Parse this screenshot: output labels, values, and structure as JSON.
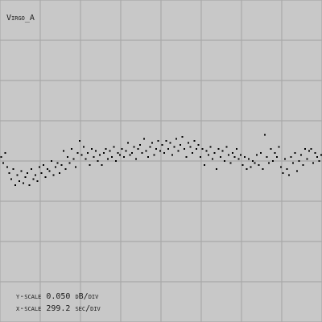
{
  "chart_data": {
    "type": "scatter",
    "title": "Virgo_A",
    "annotations": [
      "y-scale 0.050 dB/div",
      "x-scale 299.2 sec/div"
    ],
    "xlim": [
      0,
      8
    ],
    "ylim": [
      -4,
      4
    ],
    "xticks": [
      0,
      1,
      2,
      3,
      4,
      5,
      6,
      7,
      8
    ],
    "yticks": [
      -4,
      -3,
      -2,
      -1,
      0,
      1,
      2,
      3,
      4
    ],
    "grid": true,
    "color": "#000000",
    "x": [
      0.03,
      0.08,
      0.13,
      0.18,
      0.23,
      0.28,
      0.33,
      0.38,
      0.43,
      0.48,
      0.53,
      0.58,
      0.63,
      0.68,
      0.73,
      0.78,
      0.83,
      0.88,
      0.93,
      0.98,
      1.03,
      1.08,
      1.13,
      1.18,
      1.23,
      1.28,
      1.33,
      1.38,
      1.43,
      1.48,
      1.53,
      1.58,
      1.63,
      1.68,
      1.73,
      1.78,
      1.83,
      1.88,
      1.93,
      1.98,
      2.03,
      2.08,
      2.13,
      2.18,
      2.23,
      2.28,
      2.33,
      2.38,
      2.43,
      2.48,
      2.53,
      2.58,
      2.63,
      2.68,
      2.73,
      2.78,
      2.83,
      2.88,
      2.93,
      2.98,
      3.03,
      3.08,
      3.13,
      3.18,
      3.23,
      3.28,
      3.33,
      3.38,
      3.43,
      3.48,
      3.53,
      3.58,
      3.63,
      3.68,
      3.73,
      3.78,
      3.83,
      3.88,
      3.93,
      3.98,
      4.03,
      4.08,
      4.13,
      4.18,
      4.23,
      4.28,
      4.33,
      4.38,
      4.43,
      4.48,
      4.53,
      4.58,
      4.63,
      4.68,
      4.73,
      4.78,
      4.83,
      4.88,
      4.93,
      4.98,
      5.03,
      5.08,
      5.13,
      5.18,
      5.23,
      5.28,
      5.33,
      5.38,
      5.43,
      5.48,
      5.53,
      5.58,
      5.63,
      5.68,
      5.73,
      5.78,
      5.83,
      5.88,
      5.93,
      5.98,
      6.03,
      6.08,
      6.13,
      6.18,
      6.23,
      6.28,
      6.33,
      6.38,
      6.43,
      6.48,
      6.53,
      6.58,
      6.63,
      6.68,
      6.73,
      6.78,
      6.83,
      6.88,
      6.93,
      6.98,
      7.03,
      7.08,
      7.13,
      7.18,
      7.23,
      7.28,
      7.33,
      7.38,
      7.43,
      7.48,
      7.53,
      7.58,
      7.63,
      7.68,
      7.73,
      7.78,
      7.83,
      7.88,
      7.93,
      7.98
    ],
    "values": [
      0.1,
      -0.05,
      0.2,
      -0.15,
      -0.3,
      -0.45,
      -0.2,
      -0.6,
      -0.35,
      -0.5,
      -0.25,
      -0.55,
      -0.4,
      -0.3,
      -0.6,
      -0.2,
      -0.45,
      -0.35,
      -0.5,
      -0.15,
      -0.3,
      -0.1,
      -0.4,
      -0.2,
      -0.25,
      0.0,
      -0.35,
      -0.15,
      -0.05,
      -0.3,
      -0.1,
      0.25,
      -0.2,
      0.1,
      -0.05,
      0.3,
      0.05,
      -0.15,
      0.2,
      0.5,
      0.15,
      0.35,
      0.05,
      0.2,
      -0.1,
      0.3,
      0.1,
      0.25,
      0.0,
      0.15,
      -0.1,
      0.2,
      0.3,
      0.05,
      0.25,
      0.1,
      0.35,
      0.0,
      0.2,
      0.15,
      0.3,
      0.1,
      0.25,
      0.45,
      0.15,
      0.2,
      0.35,
      0.05,
      0.3,
      0.4,
      0.2,
      0.55,
      0.25,
      0.1,
      0.35,
      0.45,
      0.15,
      0.3,
      0.5,
      0.25,
      0.4,
      0.2,
      0.5,
      0.3,
      0.45,
      0.15,
      0.35,
      0.55,
      0.25,
      0.4,
      0.6,
      0.3,
      0.1,
      0.45,
      0.35,
      0.2,
      0.5,
      0.3,
      0.4,
      0.1,
      0.3,
      -0.1,
      0.25,
      0.15,
      0.35,
      0.05,
      0.2,
      -0.2,
      0.3,
      0.1,
      0.25,
      0.0,
      0.35,
      0.15,
      -0.05,
      0.2,
      0.1,
      0.3,
      0.05,
      0.15,
      -0.1,
      0.1,
      -0.2,
      0.05,
      -0.15,
      0.0,
      -0.05,
      0.15,
      -0.1,
      0.2,
      -0.2,
      0.65,
      0.1,
      -0.05,
      0.3,
      0.0,
      0.2,
      0.1,
      0.35,
      -0.15,
      -0.3,
      0.05,
      -0.2,
      -0.35,
      0.1,
      -0.05,
      0.2,
      -0.25,
      0.0,
      0.15,
      -0.1,
      0.3,
      0.05,
      0.25,
      0.3,
      -0.05,
      0.2,
      0.1,
      0.0,
      0.15
    ]
  }
}
